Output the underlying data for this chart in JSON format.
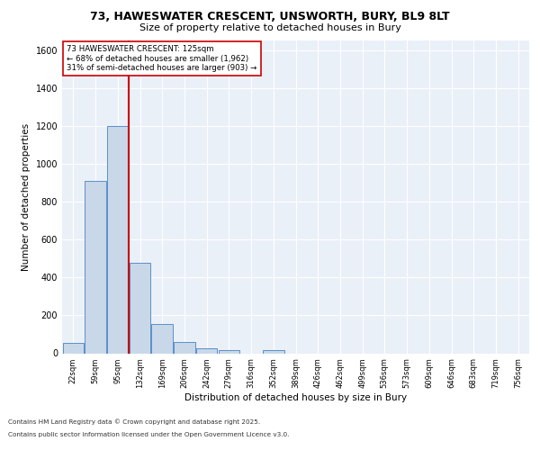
{
  "title1": "73, HAWESWATER CRESCENT, UNSWORTH, BURY, BL9 8LT",
  "title2": "Size of property relative to detached houses in Bury",
  "xlabel": "Distribution of detached houses by size in Bury",
  "ylabel": "Number of detached properties",
  "bin_labels": [
    "22sqm",
    "59sqm",
    "95sqm",
    "132sqm",
    "169sqm",
    "206sqm",
    "242sqm",
    "279sqm",
    "316sqm",
    "352sqm",
    "389sqm",
    "426sqm",
    "462sqm",
    "499sqm",
    "536sqm",
    "573sqm",
    "609sqm",
    "646sqm",
    "683sqm",
    "719sqm",
    "756sqm"
  ],
  "bar_values": [
    55,
    910,
    1200,
    475,
    155,
    57,
    28,
    15,
    0,
    18,
    0,
    0,
    0,
    0,
    0,
    0,
    0,
    0,
    0,
    0,
    0
  ],
  "bar_color": "#c8d8e8",
  "bar_edge_color": "#5b8fc9",
  "property_line_color": "#cc0000",
  "annotation_title": "73 HAWESWATER CRESCENT: 125sqm",
  "annotation_line1": "← 68% of detached houses are smaller (1,962)",
  "annotation_line2": "31% of semi-detached houses are larger (903) →",
  "annotation_box_color": "#ffffff",
  "annotation_box_edge": "#cc0000",
  "ylim": [
    0,
    1650
  ],
  "yticks": [
    0,
    200,
    400,
    600,
    800,
    1000,
    1200,
    1400,
    1600
  ],
  "bg_color": "#eaf0f8",
  "footnote1": "Contains HM Land Registry data © Crown copyright and database right 2025.",
  "footnote2": "Contains public sector information licensed under the Open Government Licence v3.0."
}
